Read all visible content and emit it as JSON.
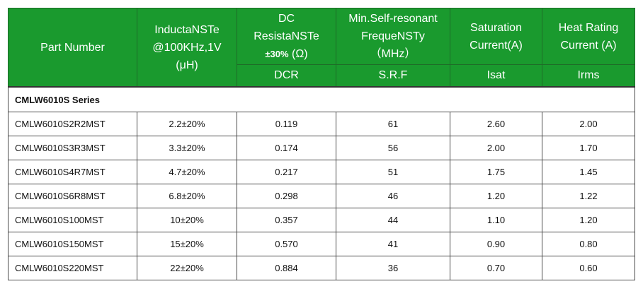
{
  "headers": {
    "part_number": "Part Number",
    "inductance": [
      "InductaNSTe",
      "@100KHz,1V",
      "(μH)"
    ],
    "dc_resistance": {
      "line1": "DC",
      "line2": "ResistaNSTe",
      "tol": "±30%",
      "unit": "(Ω)",
      "abbr": "DCR"
    },
    "srf": {
      "line1": "Min.Self-resonant",
      "line2": "FrequeNSTy",
      "unit": "（MHz）",
      "abbr": "S.R.F"
    },
    "saturation": {
      "line1": "Saturation",
      "line2": "Current(A)",
      "abbr": "Isat"
    },
    "heat": {
      "line1": "Heat Rating",
      "line2": "Current (A)",
      "abbr": "Irms"
    }
  },
  "series_label": "CMLW6010S Series",
  "rows": [
    [
      "CMLW6010S2R2MST",
      "2.2±20%",
      "0.119",
      "61",
      "2.60",
      "2.00"
    ],
    [
      "CMLW6010S3R3MST",
      "3.3±20%",
      "0.174",
      "56",
      "2.00",
      "1.70"
    ],
    [
      "CMLW6010S4R7MST",
      "4.7±20%",
      "0.217",
      "51",
      "1.75",
      "1.45"
    ],
    [
      "CMLW6010S6R8MST",
      "6.8±20%",
      "0.298",
      "46",
      "1.20",
      "1.22"
    ],
    [
      "CMLW6010S100MST",
      "10±20%",
      "0.357",
      "44",
      "1.10",
      "1.20"
    ],
    [
      "CMLW6010S150MST",
      "15±20%",
      "0.570",
      "41",
      "0.90",
      "0.80"
    ],
    [
      "CMLW6010S220MST",
      "22±20%",
      "0.884",
      "36",
      "0.70",
      "0.60"
    ]
  ]
}
